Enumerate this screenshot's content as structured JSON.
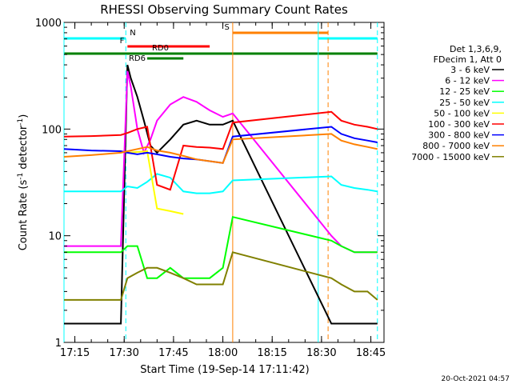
{
  "chart_data": {
    "type": "line",
    "title": "RHESSI Observing Summary Count Rates",
    "xlabel": "Start Time (19-Sep-14 17:11:42)",
    "ylabel_main": "Count Rate (s",
    "ylabel_sup1": "-1",
    "ylabel_mid": " detector",
    "ylabel_sup2": "-1",
    "ylabel_end": ")",
    "xlim": [
      "17:11:42",
      "18:49:00"
    ],
    "ylim": [
      1,
      1000
    ],
    "yscale": "log",
    "x_ticks": [
      "17:15",
      "17:30",
      "17:45",
      "18:00",
      "18:15",
      "18:30",
      "18:45"
    ],
    "y_ticks": [
      "1",
      "10",
      "100",
      "1000"
    ],
    "legend_header": [
      "Det 1,3,6,9,",
      "FDecim 1, Att 0"
    ],
    "legend_placement": "right",
    "timestamp": "20-Oct-2021 04:57",
    "flags": [
      {
        "label": "N",
        "color": "#00ffff",
        "segments": [
          [
            "17:11:42",
            "17:30:30"
          ],
          [
            "18:29:00",
            "18:47:00"
          ]
        ]
      },
      {
        "label": "F",
        "color": "#ff0000",
        "segments": [
          [
            "17:31:00",
            "17:56:00"
          ]
        ]
      },
      {
        "label": "S",
        "color": "#ff8000",
        "segments": [
          [
            "18:03:00",
            "18:32:00"
          ]
        ]
      },
      {
        "label": "RD0",
        "color": "#008000",
        "segments": [
          [
            "17:11:42",
            "18:47:00"
          ]
        ]
      },
      {
        "label": "RD6",
        "color": "#008000",
        "segments": [
          [
            "17:37:00",
            "17:48:00"
          ]
        ]
      }
    ],
    "vlines": [
      {
        "x": "17:30:30",
        "color": "#00ffff",
        "style": "dashed"
      },
      {
        "x": "17:11:42",
        "color": "#00ffff",
        "style": "solid"
      },
      {
        "x": "18:29:00",
        "color": "#00ffff",
        "style": "solid"
      },
      {
        "x": "18:47:00",
        "color": "#00ffff",
        "style": "dashed"
      },
      {
        "x": "18:03:00",
        "color": "#ff8000",
        "style": "solid"
      },
      {
        "x": "18:32:00",
        "color": "#ff8000",
        "style": "dashed"
      }
    ],
    "series": [
      {
        "name": "3 - 6 keV",
        "color": "#000000",
        "x": [
          "17:11:42",
          "17:20",
          "17:29",
          "17:31",
          "17:32",
          "17:34",
          "17:36",
          "17:38",
          "17:40",
          "17:44",
          "17:48",
          "17:52",
          "17:56",
          "18:00",
          "18:03",
          "18:33",
          "18:36",
          "18:40",
          "18:44",
          "18:47"
        ],
        "values": [
          1.5,
          1.5,
          1.5,
          400,
          300,
          200,
          120,
          70,
          60,
          80,
          110,
          120,
          110,
          110,
          120,
          1.5,
          1.5,
          1.5,
          1.5,
          1.5
        ]
      },
      {
        "name": "6 - 12 keV",
        "color": "#ff00ff",
        "x": [
          "17:11:42",
          "17:20",
          "17:29",
          "17:31",
          "17:32",
          "17:34",
          "17:36",
          "17:38",
          "17:40",
          "17:44",
          "17:48",
          "17:52",
          "17:56",
          "18:00",
          "18:03",
          "18:33",
          "18:36",
          "18:40",
          "18:44",
          "18:47"
        ],
        "values": [
          8,
          8,
          8,
          350,
          250,
          100,
          60,
          80,
          120,
          170,
          200,
          180,
          150,
          130,
          140,
          10,
          8,
          7,
          7,
          7
        ]
      },
      {
        "name": "12 - 25 keV",
        "color": "#00ff00",
        "x": [
          "17:11:42",
          "17:20",
          "17:29",
          "17:31",
          "17:34",
          "17:37",
          "17:40",
          "17:44",
          "17:48",
          "17:52",
          "17:56",
          "18:00",
          "18:03",
          "18:33",
          "18:36",
          "18:40",
          "18:44",
          "18:47"
        ],
        "values": [
          7,
          7,
          7,
          8,
          8,
          4,
          4,
          5,
          4,
          4,
          4,
          5,
          15,
          9,
          8,
          7,
          7,
          7
        ]
      },
      {
        "name": "25 - 50 keV",
        "color": "#00ffff",
        "x": [
          "17:11:42",
          "17:20",
          "17:29",
          "17:31",
          "17:34",
          "17:37",
          "17:40",
          "17:44",
          "17:48",
          "17:52",
          "17:56",
          "18:00",
          "18:03",
          "18:33",
          "18:36",
          "18:40",
          "18:44",
          "18:47"
        ],
        "values": [
          26,
          26,
          26,
          29,
          28,
          32,
          38,
          35,
          26,
          25,
          25,
          26,
          33,
          36,
          30,
          28,
          27,
          26
        ]
      },
      {
        "name": "50 - 100 keV",
        "color": "#ffff00",
        "x": [
          "17:31",
          "17:37",
          "17:40",
          "17:44",
          "17:48"
        ],
        "values": [
          60,
          62,
          18,
          17,
          16
        ]
      },
      {
        "name": "100 - 300 keV",
        "color": "#ff0000",
        "x": [
          "17:11:42",
          "17:20",
          "17:29",
          "17:31",
          "17:34",
          "17:37",
          "17:40",
          "17:44",
          "17:48",
          "17:52",
          "17:56",
          "18:00",
          "18:03",
          "18:33",
          "18:36",
          "18:40",
          "18:44",
          "18:47"
        ],
        "values": [
          85,
          86,
          88,
          92,
          100,
          105,
          30,
          27,
          70,
          68,
          67,
          65,
          115,
          145,
          120,
          110,
          105,
          100
        ]
      },
      {
        "name": "300 - 800 keV",
        "color": "#0000ff",
        "x": [
          "17:11:42",
          "17:20",
          "17:29",
          "17:31",
          "17:34",
          "17:37",
          "17:40",
          "17:44",
          "17:48",
          "17:52",
          "17:56",
          "18:00",
          "18:03",
          "18:33",
          "18:36",
          "18:40",
          "18:44",
          "18:47"
        ],
        "values": [
          65,
          63,
          62,
          60,
          58,
          60,
          58,
          55,
          53,
          52,
          50,
          48,
          85,
          105,
          90,
          82,
          78,
          75
        ]
      },
      {
        "name": "800 - 7000 keV",
        "color": "#ff8000",
        "x": [
          "17:11:42",
          "17:20",
          "17:29",
          "17:31",
          "17:34",
          "17:37",
          "17:40",
          "17:44",
          "17:48",
          "17:52",
          "17:56",
          "18:00",
          "18:03",
          "18:33",
          "18:36",
          "18:40",
          "18:44",
          "18:47"
        ],
        "values": [
          55,
          57,
          60,
          62,
          65,
          68,
          63,
          60,
          56,
          52,
          50,
          48,
          80,
          90,
          78,
          72,
          68,
          65
        ]
      },
      {
        "name": "7000 - 15000 keV",
        "color": "#808000",
        "x": [
          "17:11:42",
          "17:20",
          "17:29",
          "17:31",
          "17:34",
          "17:37",
          "17:40",
          "17:44",
          "17:48",
          "17:52",
          "17:56",
          "18:00",
          "18:03",
          "18:33",
          "18:36",
          "18:40",
          "18:44",
          "18:47"
        ],
        "values": [
          2.5,
          2.5,
          2.5,
          4,
          4.5,
          5,
          5,
          4.5,
          4,
          3.5,
          3.5,
          3.5,
          7,
          4,
          3.5,
          3,
          3,
          2.5
        ]
      }
    ]
  }
}
